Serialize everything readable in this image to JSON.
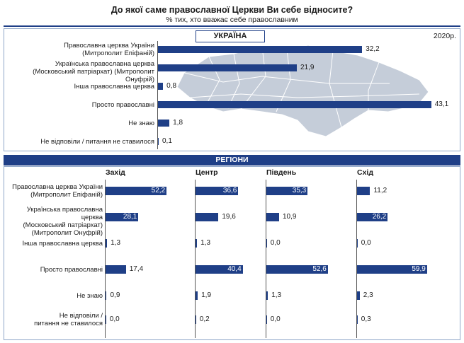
{
  "title": "До якої саме православної Церкви Ви себе відносите?",
  "subtitle": "% тих, хто вважає себе православним",
  "colors": {
    "bar": "#1f3f87",
    "map": "#c5cdd9"
  },
  "chart_data": [
    {
      "type": "bar",
      "title": "УКРАЇНА",
      "year_note": "2020р.",
      "categories": [
        "Православна церква України\n(Митрополит Епіфаній)",
        "Українська православна церква\n(Московський патріархат) (Митрополит Онуфрій)",
        "Інша православна церква",
        "Просто православні",
        "Не знаю",
        "Не відповіли / питання не ставилося"
      ],
      "values": [
        32.2,
        21.9,
        0.8,
        43.1,
        1.8,
        0.1
      ],
      "value_labels": [
        "32,2",
        "21,9",
        "0,8",
        "43,1",
        "1,8",
        "0,1"
      ]
    },
    {
      "type": "bar",
      "title": "РЕГІОНИ",
      "categories": [
        "Православна церква України\n(Митрополит Епіфаній)",
        "Українська православна церква\n(Московський патріархат)\n(Митрополит Онуфрій)",
        "Інша православна церква",
        "Просто православні",
        "Не знаю",
        "Не відповіли /\nпитання не ставилося"
      ],
      "series": [
        {
          "name": "Захід",
          "values": [
            52.2,
            28.1,
            1.3,
            17.4,
            0.9,
            0.0
          ],
          "value_labels": [
            "52,2",
            "28,1",
            "1,3",
            "17,4",
            "0,9",
            "0,0"
          ]
        },
        {
          "name": "Центр",
          "values": [
            36.6,
            19.6,
            1.3,
            40.4,
            1.9,
            0.2
          ],
          "value_labels": [
            "36,6",
            "19,6",
            "1,3",
            "40,4",
            "1,9",
            "0,2"
          ]
        },
        {
          "name": "Південь",
          "values": [
            35.3,
            10.9,
            0.0,
            52.6,
            1.3,
            0.0
          ],
          "value_labels": [
            "35,3",
            "10,9",
            "0,0",
            "52,6",
            "1,3",
            "0,0"
          ]
        },
        {
          "name": "Схід",
          "values": [
            11.2,
            26.2,
            0.0,
            59.9,
            2.3,
            0.3
          ],
          "value_labels": [
            "11,2",
            "26,2",
            "0,0",
            "59,9",
            "2,3",
            "0,3"
          ]
        }
      ]
    }
  ]
}
